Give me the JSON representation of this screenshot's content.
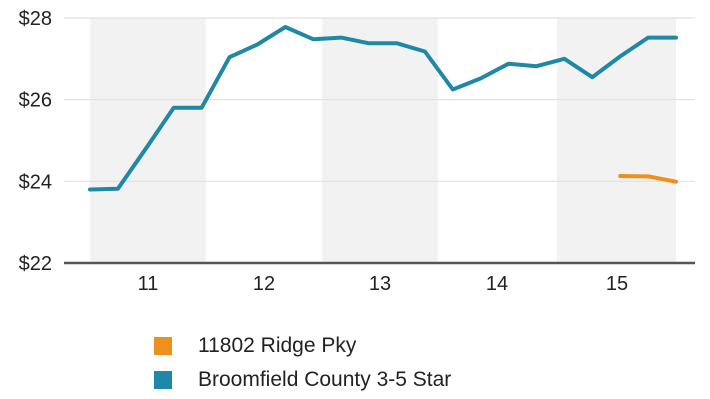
{
  "chart_data": {
    "type": "line",
    "title": "",
    "xlabel": "",
    "ylabel": "",
    "x_ticks": [
      "11",
      "12",
      "13",
      "14",
      "15"
    ],
    "y_ticks": [
      "$22",
      "$24",
      "$26",
      "$28"
    ],
    "y_tick_values": [
      22,
      24,
      26,
      28
    ],
    "ylim": [
      22,
      28
    ],
    "xlim": [
      10.25,
      15.6
    ],
    "grid": "horizontal",
    "shaded_bands": [
      [
        10.25,
        11.25
      ],
      [
        12.25,
        13.25
      ],
      [
        14.5,
        15.5
      ]
    ],
    "legend_position": "bottom",
    "series": [
      {
        "name": "11802 Ridge Pky",
        "color": "#f0901c",
        "x": [
          15.0,
          15.25,
          15.5
        ],
        "values": [
          24.13,
          24.12,
          23.99
        ]
      },
      {
        "name": "Broomfield County 3-5 Star",
        "color": "#1f88a6",
        "x": [
          10.25,
          10.5,
          10.75,
          11.0,
          11.25,
          11.5,
          11.75,
          12.0,
          12.25,
          12.5,
          12.75,
          13.0,
          13.25,
          13.5,
          13.75,
          14.0,
          14.25,
          14.5,
          14.75,
          15.0,
          15.25,
          15.5
        ],
        "values": [
          23.8,
          23.82,
          24.8,
          25.8,
          25.8,
          27.04,
          27.35,
          27.78,
          27.48,
          27.52,
          27.38,
          27.38,
          27.18,
          26.25,
          26.52,
          26.88,
          26.82,
          27.0,
          26.55,
          27.06,
          27.52,
          27.52
        ]
      }
    ]
  }
}
